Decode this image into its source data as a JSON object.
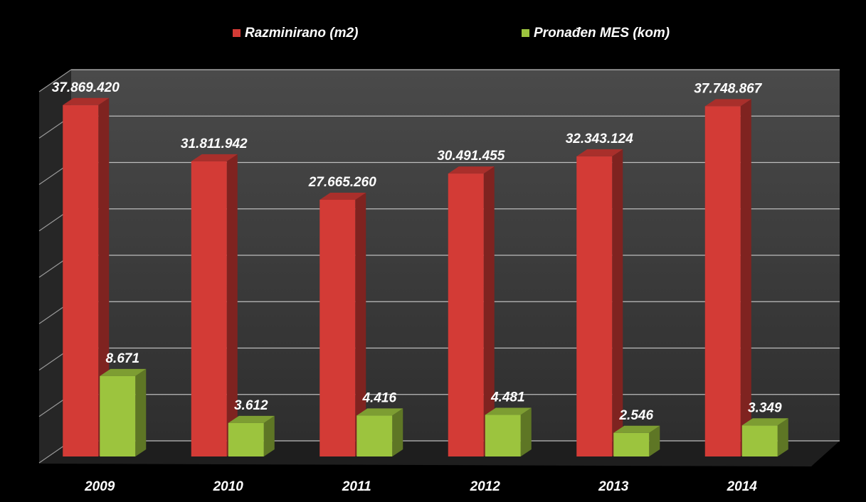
{
  "chart_data": {
    "type": "bar",
    "categories": [
      "2009",
      "2010",
      "2011",
      "2012",
      "2013",
      "2014"
    ],
    "series": [
      {
        "name": "Razminirano (m2)",
        "color": "#d33b36",
        "values": [
          37869420,
          31811942,
          27665260,
          30491455,
          32343124,
          37748867
        ],
        "value_labels": [
          "37.869.420",
          "31.811.942",
          "27.665.260",
          "30.491.455",
          "32.343.124",
          "37.748.867"
        ]
      },
      {
        "name": "Pronađen MES (kom)",
        "color": "#9cc43e",
        "axis": "y2",
        "values": [
          8671,
          3612,
          4416,
          4481,
          2546,
          3349
        ],
        "value_labels": [
          "8.671",
          "3.612",
          "4.416",
          "4.481",
          "2.546",
          "3.349"
        ]
      }
    ],
    "ylim": [
      0,
      40000000
    ],
    "yticks": [
      0,
      5000000,
      10000000,
      15000000,
      20000000,
      25000000,
      30000000,
      35000000,
      40000000
    ],
    "y2lim": [
      0,
      40000
    ],
    "grid": true
  }
}
